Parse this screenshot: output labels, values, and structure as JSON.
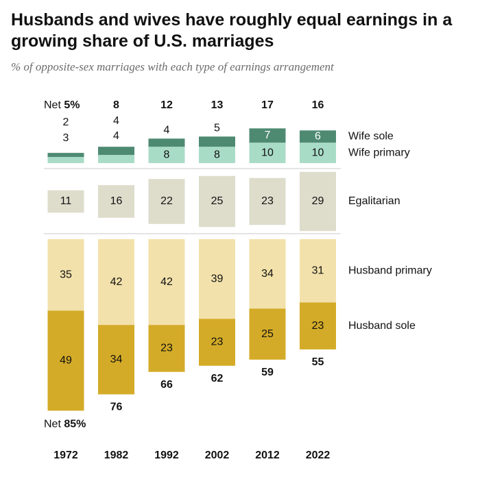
{
  "title": "Husbands and wives have roughly equal earnings in a growing share of U.S. marriages",
  "subtitle": "% of opposite-sex marriages with each type of earnings arrangement",
  "net_prefix": "Net",
  "colors": {
    "wife_sole": "#4e8a72",
    "wife_primary": "#a9dcc7",
    "egalitarian": "#deddcc",
    "husband_primary": "#f2e1ab",
    "husband_sole": "#d4ab28",
    "separator": "#c8c8c8"
  },
  "chart_data": {
    "type": "bar",
    "categories": [
      "1972",
      "1982",
      "1992",
      "2002",
      "2012",
      "2022"
    ],
    "series": [
      {
        "name": "Wife sole",
        "values": [
          2,
          4,
          4,
          5,
          7,
          6
        ]
      },
      {
        "name": "Wife primary",
        "values": [
          3,
          4,
          8,
          8,
          10,
          10
        ]
      },
      {
        "name": "Egalitarian",
        "values": [
          11,
          16,
          22,
          25,
          23,
          29
        ]
      },
      {
        "name": "Husband primary",
        "values": [
          35,
          42,
          42,
          39,
          34,
          31
        ]
      },
      {
        "name": "Husband sole",
        "values": [
          49,
          34,
          23,
          23,
          25,
          23
        ]
      }
    ],
    "net_wife": [
      "5%",
      "8",
      "12",
      "13",
      "17",
      "16"
    ],
    "net_husband": [
      "85%",
      "76",
      "66",
      "62",
      "59",
      "55"
    ],
    "unit": "%"
  }
}
